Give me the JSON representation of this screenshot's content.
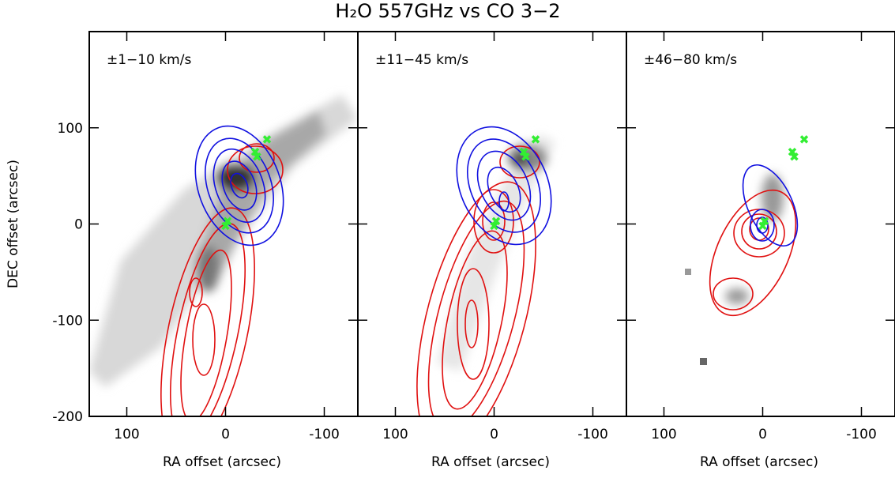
{
  "title": "H₂O 557GHz vs CO 3−2",
  "chart_data": [
    {
      "type": "contour",
      "panel_label": "±1−10 km/s",
      "xlabel": "RA offset (arcsec)",
      "ylabel": "DEC offset (arcsec)",
      "xlim": [
        138,
        -134
      ],
      "ylim": [
        -200,
        200
      ],
      "xticks": [
        100,
        0,
        -100
      ],
      "yticks": [
        -200,
        -100,
        0,
        100
      ],
      "markers": {
        "color": "#33ee33",
        "x": [
          -30,
          -32,
          -42,
          0,
          -2
        ],
        "y": [
          75,
          70,
          88,
          -2,
          3
        ]
      }
    },
    {
      "type": "contour",
      "panel_label": "±11−45 km/s",
      "xlabel": "RA offset (arcsec)",
      "xlim": [
        138,
        -134
      ],
      "ylim": [
        -200,
        200
      ],
      "xticks": [
        100,
        0,
        -100
      ],
      "yticks": [
        -200,
        -100,
        0,
        100
      ],
      "markers": {
        "color": "#33ee33",
        "x": [
          -30,
          -32,
          -42,
          0,
          -2
        ],
        "y": [
          75,
          70,
          88,
          -2,
          3
        ]
      }
    },
    {
      "type": "contour",
      "panel_label": "±46−80 km/s",
      "xlabel": "RA offset (arcsec)",
      "xlim": [
        138,
        -134
      ],
      "ylim": [
        -200,
        200
      ],
      "xticks": [
        100,
        0,
        -100
      ],
      "yticks": [
        -200,
        -100,
        0,
        100
      ],
      "markers": {
        "color": "#33ee33",
        "x": [
          -30,
          -32,
          -42,
          0,
          -2
        ],
        "y": [
          75,
          70,
          88,
          -2,
          3
        ]
      }
    }
  ]
}
